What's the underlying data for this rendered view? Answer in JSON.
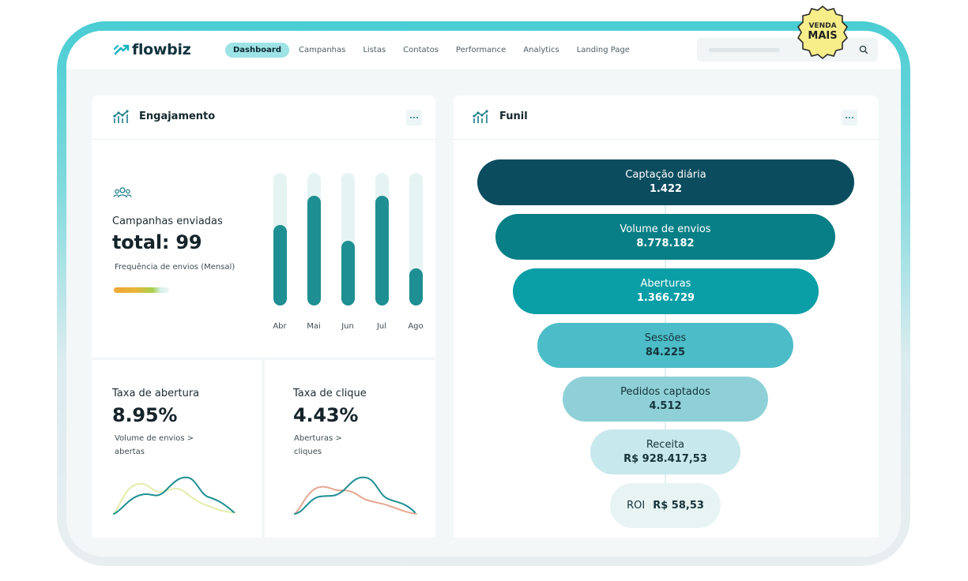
{
  "nav": {
    "logo": "flowbiz",
    "items": [
      {
        "label": "Dashboard",
        "active": true
      },
      {
        "label": "Campanhas",
        "active": false
      },
      {
        "label": "Listas",
        "active": false
      },
      {
        "label": "Contatos",
        "active": false
      },
      {
        "label": "Performance",
        "active": false
      },
      {
        "label": "Analytics",
        "active": false
      },
      {
        "label": "Landing Page",
        "active": false
      }
    ],
    "search_icon": "search-icon"
  },
  "badge": {
    "line1": "VENDA",
    "line2": "MAIS"
  },
  "engajamento": {
    "title": "Engajamento",
    "campaigns_label": "Campanhas enviadas",
    "total": "total: 99",
    "frequency_label": "Frequência de envios (Mensal)",
    "chart_data": {
      "type": "bar",
      "categories": [
        "Abr",
        "Mai",
        "Jun",
        "Jul",
        "Ago"
      ],
      "values": [
        61,
        83,
        49,
        83,
        28
      ],
      "ylim": [
        0,
        100
      ],
      "title": "",
      "xlabel": "",
      "ylabel": ""
    },
    "open_rate": {
      "label": "Taxa de abertura",
      "value": "8.95%",
      "desc_line1": "Volume de envios >",
      "desc_line2": "abertas"
    },
    "click_rate": {
      "label": "Taxa de clique",
      "value": "4.43%",
      "desc_line1": "Aberturas >",
      "desc_line2": "cliques"
    }
  },
  "funil": {
    "title": "Funil",
    "stages": [
      {
        "label": "Captação diária",
        "value": "1.422"
      },
      {
        "label": "Volume de envios",
        "value": "8.778.182"
      },
      {
        "label": "Aberturas",
        "value": "1.366.729"
      },
      {
        "label": "Sessões",
        "value": "84.225"
      },
      {
        "label": "Pedidos captados",
        "value": "4.512"
      },
      {
        "label": "Receita",
        "value": "R$ 928.417,53"
      },
      {
        "label": "ROI",
        "value": "R$ 58,53"
      }
    ]
  },
  "colors": {
    "accent": "#1e8f92",
    "brand": "#11343e",
    "funnel_top": "#0b4c5f"
  }
}
